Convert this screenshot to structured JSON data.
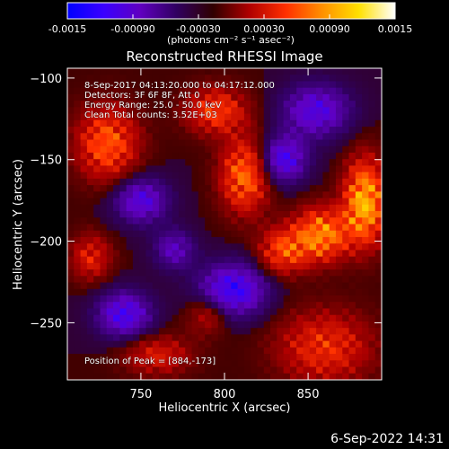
{
  "colorbar": {
    "range": [
      -0.0015,
      0.0015
    ],
    "ticks": [
      "-0.0015",
      "-0.00090",
      "-0.00030",
      "0.00030",
      "0.00090",
      "0.0015"
    ],
    "tick_values": [
      -0.0015,
      -0.0009,
      -0.0003,
      0.0003,
      0.0009,
      0.0015
    ],
    "unit_label": "(photons cm⁻² s⁻¹ asec⁻²)",
    "colors": [
      "#0000ff",
      "#3a00ff",
      "#6000c0",
      "#300060",
      "#300000",
      "#b00000",
      "#ff3000",
      "#ff9000",
      "#ffe000",
      "#ffffff"
    ]
  },
  "annotations": {
    "time_range": "8-Sep-2017 04:13:20.000 to 04:17:12.000",
    "detectors": "Detectors: 3F 6F 8F, Att 0",
    "energy_range": "Energy Range: 25.0 - 50.0 keV",
    "clean_counts": "Clean      Total counts: 3.52E+03",
    "peak_position": "Position of Peak = [884,-173]"
  },
  "timestamp": "6-Sep-2022 14:31",
  "chart_data": {
    "type": "heatmap",
    "title": "Reconstructed RHESSI Image",
    "xlabel": "Heliocentric X (arcsec)",
    "ylabel": "Heliocentric Y (arcsec)",
    "xlim": [
      706,
      894
    ],
    "ylim": [
      -285,
      -94
    ],
    "xticks": [
      750,
      800,
      850
    ],
    "yticks": [
      -100,
      -150,
      -200,
      -250
    ],
    "grid": false,
    "peak": [
      884,
      -173
    ],
    "sources": [
      {
        "x": 884,
        "y": -176,
        "rx": 12,
        "ry": 25,
        "value": 0.0015
      },
      {
        "x": 858,
        "y": -196,
        "rx": 16,
        "ry": 16,
        "value": 0.00125
      },
      {
        "x": 835,
        "y": -206,
        "rx": 14,
        "ry": 14,
        "value": 0.0009
      },
      {
        "x": 812,
        "y": -160,
        "rx": 14,
        "ry": 22,
        "value": 0.0011
      },
      {
        "x": 795,
        "y": -120,
        "rx": 18,
        "ry": 14,
        "value": 0.00085
      },
      {
        "x": 730,
        "y": -140,
        "rx": 18,
        "ry": 22,
        "value": 0.001
      },
      {
        "x": 720,
        "y": -210,
        "rx": 12,
        "ry": 14,
        "value": 0.00065
      },
      {
        "x": 760,
        "y": -270,
        "rx": 20,
        "ry": 12,
        "value": 0.0006
      },
      {
        "x": 860,
        "y": -265,
        "rx": 28,
        "ry": 22,
        "value": 0.00075
      },
      {
        "x": 790,
        "y": -245,
        "rx": 12,
        "ry": 12,
        "value": 0.0005
      },
      {
        "x": 835,
        "y": -150,
        "rx": 14,
        "ry": 14,
        "value": -0.0009
      },
      {
        "x": 805,
        "y": -230,
        "rx": 20,
        "ry": 16,
        "value": -0.001
      },
      {
        "x": 750,
        "y": -175,
        "rx": 16,
        "ry": 14,
        "value": -0.0008
      },
      {
        "x": 740,
        "y": -245,
        "rx": 16,
        "ry": 14,
        "value": -0.0009
      },
      {
        "x": 855,
        "y": -120,
        "rx": 20,
        "ry": 16,
        "value": -0.0008
      },
      {
        "x": 770,
        "y": -205,
        "rx": 12,
        "ry": 12,
        "value": -0.0006
      }
    ]
  }
}
